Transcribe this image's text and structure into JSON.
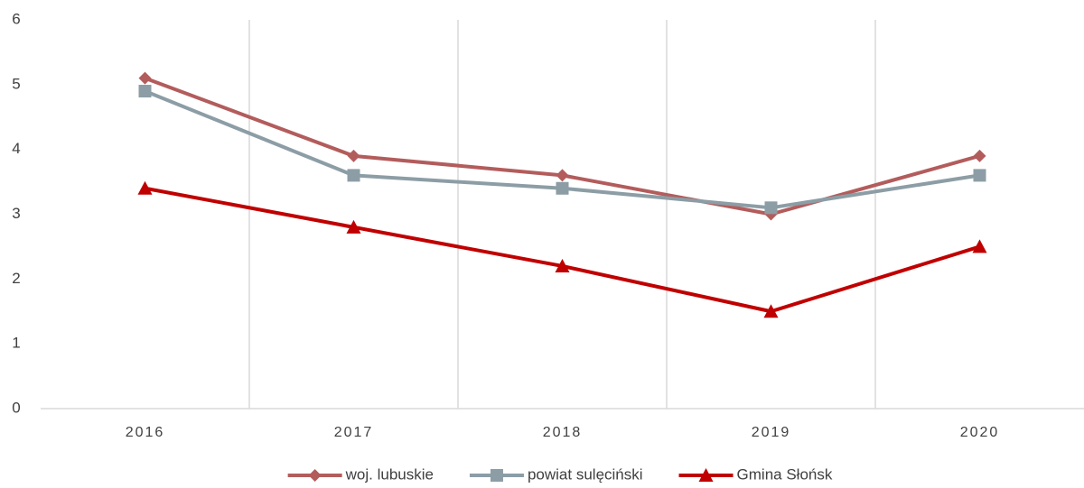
{
  "chart_data": {
    "type": "line",
    "categories": [
      "2016",
      "2017",
      "2018",
      "2019",
      "2020"
    ],
    "series": [
      {
        "name": "woj. lubuskie",
        "color": "#b35c5c",
        "marker": "diamond",
        "values": [
          5.1,
          3.9,
          3.6,
          3.0,
          3.9
        ]
      },
      {
        "name": "powiat sulęciński",
        "color": "#8c9da5",
        "marker": "square",
        "values": [
          4.9,
          3.6,
          3.4,
          3.1,
          3.6
        ]
      },
      {
        "name": "Gmina Słońsk",
        "color": "#c00000",
        "marker": "triangle",
        "values": [
          3.4,
          2.8,
          2.2,
          1.5,
          2.5
        ]
      }
    ],
    "ylim": [
      0,
      6
    ],
    "yticks": [
      0,
      1,
      2,
      3,
      4,
      5,
      6
    ],
    "legend": "bottom"
  }
}
